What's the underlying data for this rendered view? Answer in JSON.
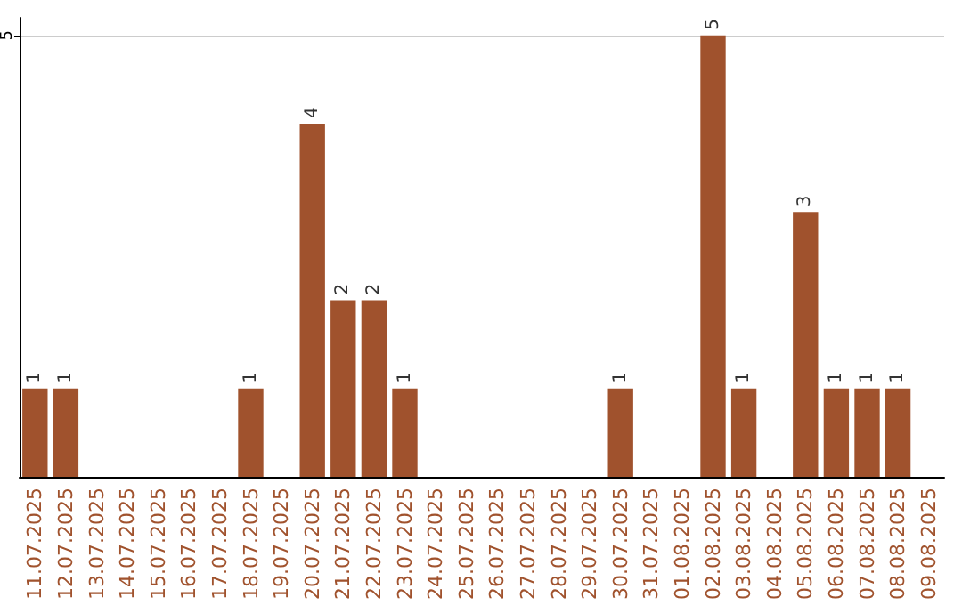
{
  "chart_data": {
    "type": "bar",
    "categories": [
      "11.07.2025",
      "12.07.2025",
      "13.07.2025",
      "14.07.2025",
      "15.07.2025",
      "16.07.2025",
      "17.07.2025",
      "18.07.2025",
      "19.07.2025",
      "20.07.2025",
      "21.07.2025",
      "22.07.2025",
      "23.07.2025",
      "24.07.2025",
      "25.07.2025",
      "26.07.2025",
      "27.07.2025",
      "28.07.2025",
      "29.07.2025",
      "30.07.2025",
      "31.07.2025",
      "01.08.2025",
      "02.08.2025",
      "03.08.2025",
      "04.08.2025",
      "05.08.2025",
      "06.08.2025",
      "07.08.2025",
      "08.08.2025",
      "09.08.2025"
    ],
    "values": [
      1,
      1,
      0,
      0,
      0,
      0,
      0,
      1,
      0,
      4,
      2,
      2,
      1,
      0,
      0,
      0,
      0,
      0,
      0,
      1,
      0,
      0,
      5,
      1,
      0,
      3,
      1,
      1,
      1,
      0
    ],
    "value_labels": [
      "1",
      "1",
      null,
      null,
      null,
      null,
      null,
      "1",
      null,
      "4",
      "2",
      "2",
      "1",
      null,
      null,
      null,
      null,
      null,
      null,
      "1",
      null,
      null,
      "5",
      "1",
      null,
      "3",
      "1",
      "1",
      "1",
      null
    ],
    "color": "#a0522d",
    "ylim": [
      0,
      5.2
    ],
    "yticks": [
      5
    ],
    "grid": "y"
  }
}
